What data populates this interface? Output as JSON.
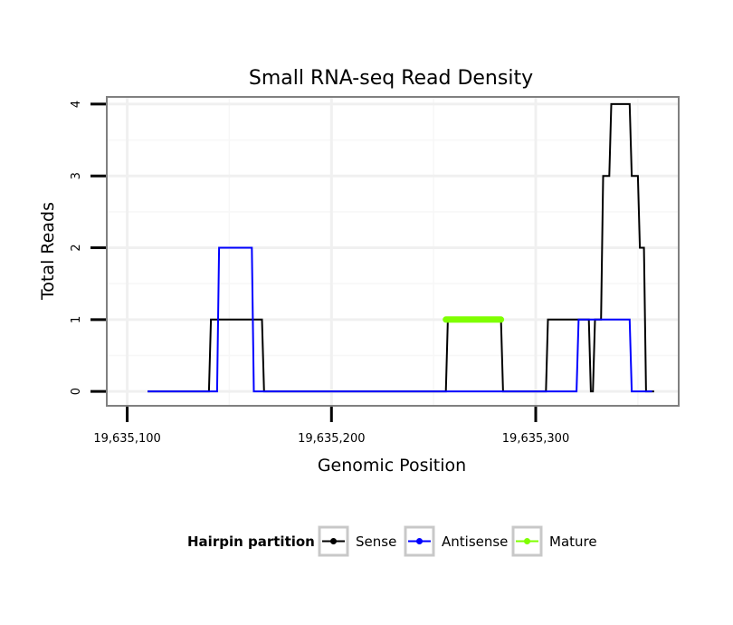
{
  "chart_data": {
    "type": "line",
    "title": "Small RNA-seq Read Density",
    "xlabel": "Genomic Position",
    "ylabel": "Total Reads",
    "xlim": [
      19635090,
      19635370
    ],
    "ylim": [
      -0.2,
      4.1
    ],
    "x_ticks": [
      {
        "value": 19635100,
        "label": "19,635,100"
      },
      {
        "value": 19635200,
        "label": "19,635,200"
      },
      {
        "value": 19635300,
        "label": "19,635,300"
      }
    ],
    "y_ticks": [
      {
        "value": 0,
        "label": "0"
      },
      {
        "value": 1,
        "label": "1"
      },
      {
        "value": 2,
        "label": "2"
      },
      {
        "value": 3,
        "label": "3"
      },
      {
        "value": 4,
        "label": "4"
      }
    ],
    "grid": true,
    "legend": {
      "title": "Hairpin partition",
      "position": "bottom",
      "entries": [
        "Sense",
        "Antisense",
        "Mature"
      ]
    },
    "series": [
      {
        "name": "Sense",
        "color": "#000000",
        "x": [
          19635110,
          19635140,
          19635141,
          19635166,
          19635167,
          19635256,
          19635257,
          19635283,
          19635284,
          19635305,
          19635306,
          19635326,
          19635327,
          19635328,
          19635329,
          19635332,
          19635333,
          19635334,
          19635335,
          19635336,
          19635337,
          19635339,
          19635340,
          19635346,
          19635347,
          19635350,
          19635351,
          19635353,
          19635354,
          19635357,
          19635358
        ],
        "values": [
          0,
          0,
          1,
          1,
          0,
          0,
          1,
          1,
          0,
          0,
          1,
          1,
          0,
          0,
          1,
          1,
          3,
          3,
          3,
          3,
          4,
          4,
          4,
          4,
          3,
          3,
          2,
          2,
          0,
          0,
          0
        ]
      },
      {
        "name": "Antisense",
        "color": "#0000ff",
        "x": [
          19635110,
          19635144,
          19635145,
          19635161,
          19635162,
          19635320,
          19635321,
          19635339,
          19635340,
          19635346,
          19635347,
          19635357
        ],
        "values": [
          0,
          0,
          2,
          2,
          0,
          0,
          1,
          1,
          1,
          1,
          0,
          0
        ]
      },
      {
        "name": "Mature",
        "color": "#7fff00",
        "x": [
          19635256,
          19635283
        ],
        "values": [
          1,
          1
        ]
      }
    ]
  }
}
